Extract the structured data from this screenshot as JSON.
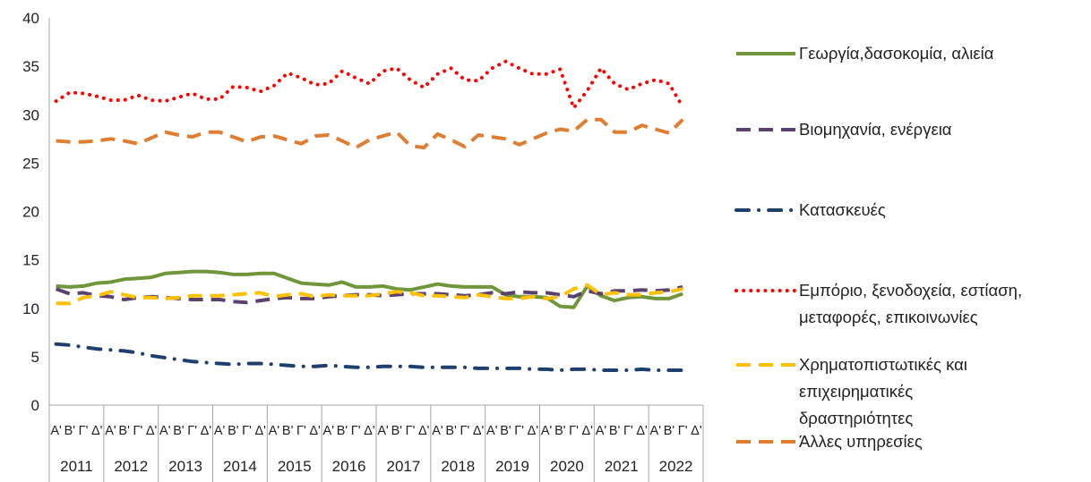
{
  "chart_data": {
    "type": "line",
    "title": "",
    "xlabel": "",
    "ylabel": "",
    "ylim": [
      0,
      40
    ],
    "yticks": [
      0,
      5,
      10,
      15,
      20,
      25,
      30,
      35,
      40
    ],
    "quarter_labels": [
      "Α",
      "Β",
      "Γ",
      "Δ"
    ],
    "years": [
      "2011",
      "2012",
      "2013",
      "2014",
      "2015",
      "2016",
      "2017",
      "2018",
      "2019",
      "2020",
      "2021",
      "2022"
    ],
    "grid": false,
    "legend_position": "right",
    "series": [
      {
        "name": "Γεωργία,δασοκομία, αλιεία",
        "color": "#70963a",
        "style": "solid",
        "values": [
          12.3,
          12.2,
          12.3,
          12.6,
          12.7,
          13.0,
          13.1,
          13.2,
          13.6,
          13.7,
          13.8,
          13.8,
          13.7,
          13.5,
          13.5,
          13.6,
          13.6,
          13.1,
          12.6,
          12.5,
          12.4,
          12.7,
          12.2,
          12.2,
          12.3,
          12.0,
          11.9,
          12.2,
          12.5,
          12.3,
          12.2,
          12.2,
          12.2,
          11.4,
          11.2,
          11.2,
          11.1,
          10.2,
          10.1,
          12.3,
          11.3,
          10.8,
          11.1,
          11.2,
          11.0,
          11.0,
          11.5
        ]
      },
      {
        "name": "Βιομηχανία, ενέργεια",
        "color": "#5b4170",
        "style": "dash",
        "values": [
          12.0,
          11.5,
          11.6,
          11.3,
          11.2,
          10.9,
          11.1,
          11.2,
          11.1,
          11.0,
          10.9,
          10.9,
          10.9,
          10.7,
          10.6,
          10.8,
          11.0,
          11.1,
          11.0,
          11.0,
          11.2,
          11.3,
          11.4,
          11.4,
          11.3,
          11.4,
          11.5,
          11.5,
          11.5,
          11.4,
          11.3,
          11.4,
          11.6,
          11.5,
          11.7,
          11.6,
          11.6,
          11.4,
          11.2,
          11.8,
          11.5,
          11.8,
          11.8,
          11.9,
          11.8,
          11.9,
          12.2
        ]
      },
      {
        "name": "Κατασκευές",
        "color": "#1f3f6e",
        "style": "dashdot",
        "values": [
          6.3,
          6.2,
          6.0,
          5.8,
          5.7,
          5.6,
          5.4,
          5.1,
          4.9,
          4.7,
          4.5,
          4.4,
          4.3,
          4.2,
          4.3,
          4.3,
          4.2,
          4.1,
          4.0,
          4.0,
          4.1,
          4.0,
          3.9,
          3.9,
          4.0,
          4.0,
          4.0,
          3.9,
          3.9,
          3.9,
          3.9,
          3.8,
          3.8,
          3.8,
          3.8,
          3.7,
          3.7,
          3.6,
          3.7,
          3.7,
          3.6,
          3.6,
          3.6,
          3.7,
          3.6,
          3.6,
          3.6
        ]
      },
      {
        "name": "Εμπόριο, ξενοδοχεία, εστίαση, μεταφορές, επικοινωνίες",
        "color": "#ff0000",
        "style": "dot",
        "values": [
          31.4,
          32.3,
          32.2,
          31.9,
          31.5,
          31.5,
          32.0,
          31.5,
          31.4,
          31.8,
          32.2,
          31.6,
          31.6,
          32.9,
          32.8,
          32.4,
          33.0,
          34.3,
          33.8,
          33.1,
          33.2,
          34.5,
          33.8,
          33.2,
          34.5,
          34.8,
          33.6,
          32.8,
          34.2,
          34.8,
          33.6,
          33.5,
          34.8,
          35.5,
          34.8,
          34.2,
          34.2,
          34.7,
          30.7,
          32.5,
          34.8,
          33.2,
          32.6,
          33.2,
          33.6,
          33.2,
          30.8
        ]
      },
      {
        "name": "Χρηματοπιστωτικές και επιχειρηματικές δραστηριότητες",
        "color": "#ffc000",
        "style": "dash",
        "values": [
          10.5,
          10.5,
          11.1,
          11.3,
          11.7,
          11.4,
          11.1,
          11.1,
          11.0,
          11.1,
          11.3,
          11.3,
          11.3,
          11.4,
          11.5,
          11.6,
          11.2,
          11.4,
          11.5,
          11.2,
          11.4,
          11.3,
          11.3,
          11.3,
          11.5,
          11.7,
          11.6,
          11.3,
          11.3,
          11.2,
          11.1,
          11.4,
          11.2,
          11.0,
          11.0,
          11.2,
          11.0,
          11.2,
          12.0,
          12.4,
          11.4,
          11.6,
          11.4,
          11.4,
          11.6,
          11.7,
          12.0
        ]
      },
      {
        "name": "Άλλες υπηρεσίες",
        "color": "#e07d30",
        "style": "dash",
        "values": [
          27.3,
          27.2,
          27.2,
          27.3,
          27.5,
          27.3,
          27.0,
          27.6,
          28.2,
          27.9,
          27.7,
          28.2,
          28.2,
          27.7,
          27.2,
          27.7,
          27.8,
          27.4,
          27.0,
          27.8,
          27.9,
          27.3,
          26.6,
          27.4,
          27.8,
          28.2,
          26.8,
          26.6,
          28.0,
          27.4,
          26.7,
          27.9,
          27.7,
          27.5,
          26.9,
          27.5,
          28.1,
          28.5,
          28.3,
          29.5,
          29.5,
          28.2,
          28.2,
          28.9,
          28.5,
          28.1,
          29.5
        ]
      }
    ]
  }
}
